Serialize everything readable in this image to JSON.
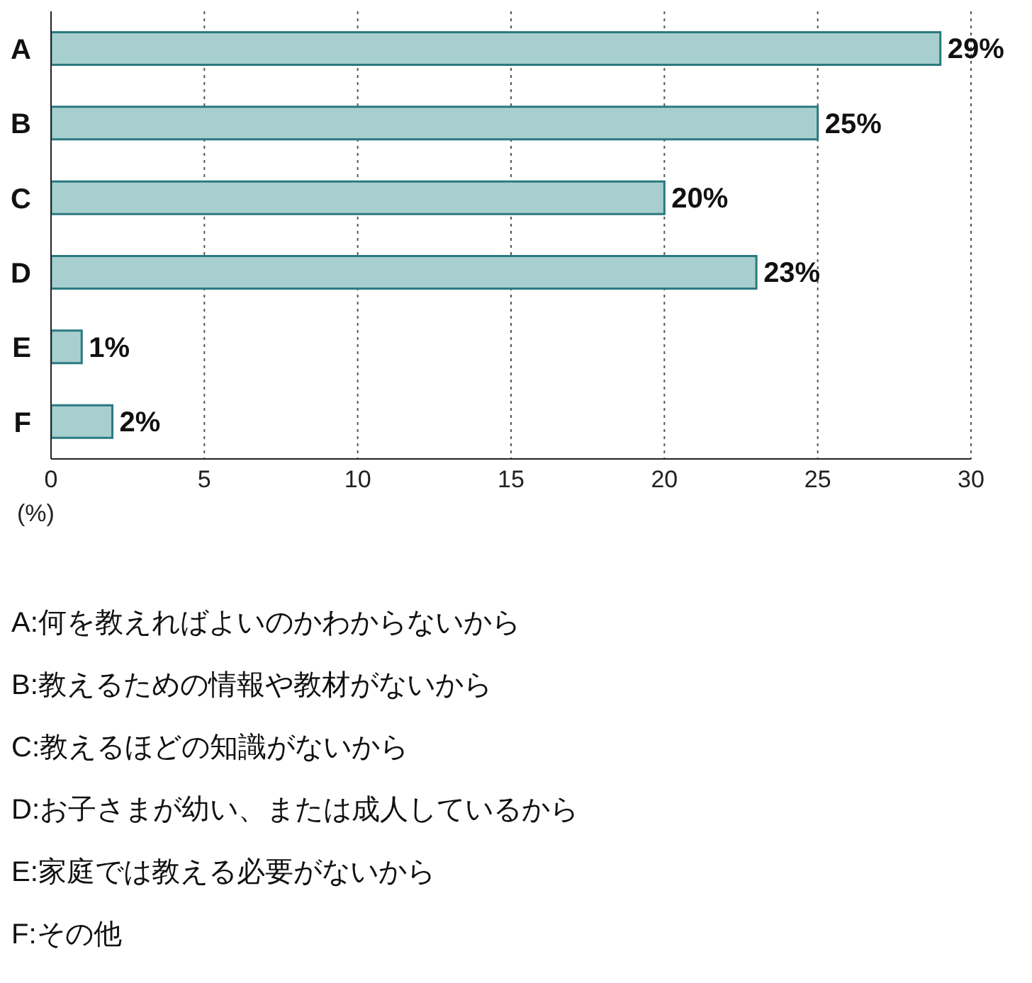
{
  "chart_data": {
    "type": "bar",
    "orientation": "horizontal",
    "categories": [
      "A",
      "B",
      "C",
      "D",
      "E",
      "F"
    ],
    "values": [
      29,
      25,
      20,
      23,
      1,
      2
    ],
    "value_labels": [
      "29%",
      "25%",
      "20%",
      "23%",
      "1%",
      "2%"
    ],
    "color": "#a8cfcf",
    "xlim": [
      0,
      30
    ],
    "xticks": [
      0,
      5,
      10,
      15,
      20,
      25,
      30
    ],
    "xlabel": "(%)",
    "grid": "x",
    "legend": false,
    "annotations": [
      "A:何を教えればよいのかわからないから",
      "B:教えるための情報や教材がないから",
      "C:教えるほどの知識がないから",
      "D:お子さまが幼い、または成人しているから",
      "E:家庭では教える必要がないから",
      "F:その他"
    ]
  }
}
